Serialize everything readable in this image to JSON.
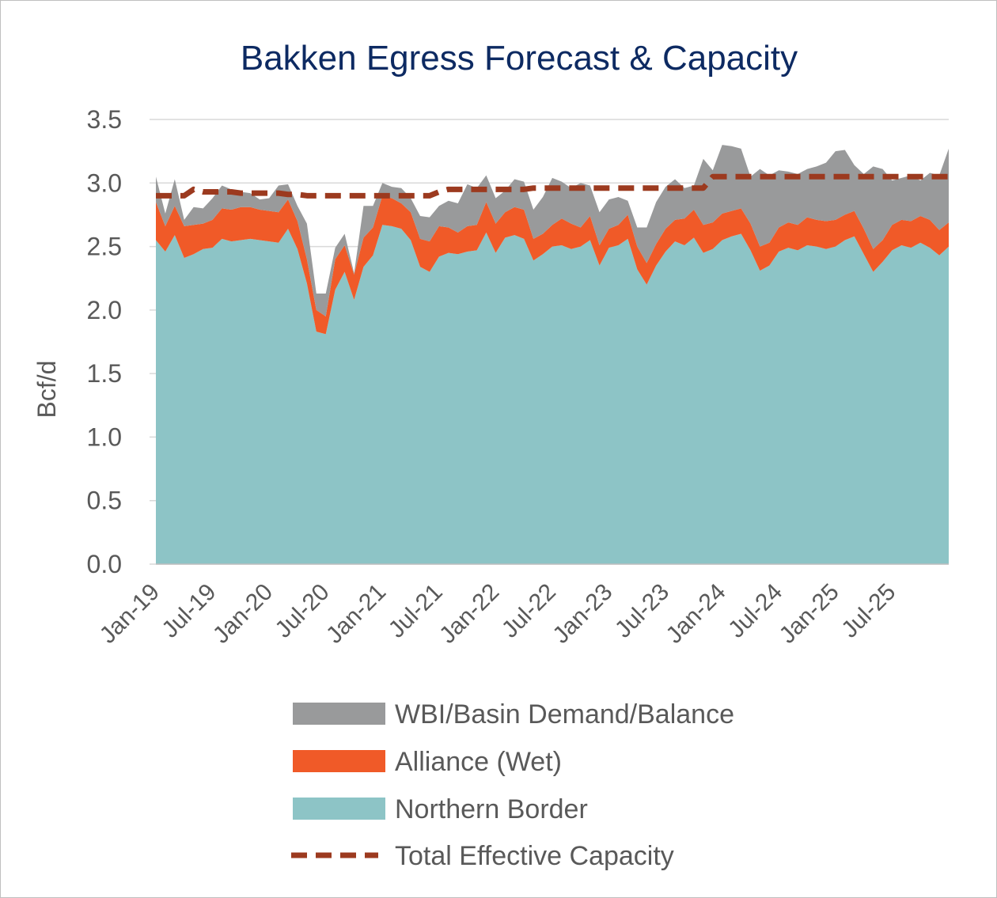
{
  "chart_data": {
    "type": "area",
    "title": "Bakken Egress Forecast & Capacity",
    "ylabel": "Bcf/d",
    "xlabel": "",
    "ylim": [
      0,
      3.5
    ],
    "yticks": [
      "0.0",
      "0.5",
      "1.0",
      "1.5",
      "2.0",
      "2.5",
      "3.0",
      "3.5"
    ],
    "ytick_values": [
      0,
      0.5,
      1.0,
      1.5,
      2.0,
      2.5,
      3.0,
      3.5
    ],
    "xticks": [
      "Jan-19",
      "Jul-19",
      "Jan-20",
      "Jul-20",
      "Jan-21",
      "Jul-21",
      "Jan-22",
      "Jul-22",
      "Jan-23",
      "Jul-23",
      "Jan-24",
      "Jul-24",
      "Jan-25",
      "Jul-25"
    ],
    "x_start": "Jan-19",
    "x_end": "Dec-25",
    "grid": "horizontal",
    "legend_position": "bottom",
    "stacked": true,
    "series": [
      {
        "name": "Northern Border",
        "color": "#8dc4c6",
        "kind": "area",
        "values": [
          2.55,
          2.46,
          2.59,
          2.41,
          2.44,
          2.48,
          2.49,
          2.56,
          2.54,
          2.55,
          2.56,
          2.55,
          2.54,
          2.53,
          2.64,
          2.48,
          2.21,
          1.83,
          1.81,
          2.16,
          2.3,
          2.08,
          2.34,
          2.43,
          2.67,
          2.66,
          2.64,
          2.55,
          2.34,
          2.3,
          2.42,
          2.45,
          2.44,
          2.46,
          2.47,
          2.61,
          2.45,
          2.57,
          2.59,
          2.56,
          2.39,
          2.44,
          2.5,
          2.51,
          2.48,
          2.5,
          2.55,
          2.35,
          2.49,
          2.51,
          2.56,
          2.32,
          2.2,
          2.35,
          2.46,
          2.54,
          2.51,
          2.57,
          2.45,
          2.48,
          2.55,
          2.58,
          2.6,
          2.47,
          2.31,
          2.35,
          2.46,
          2.49,
          2.47,
          2.51,
          2.5,
          2.48,
          2.5,
          2.55,
          2.58,
          2.44,
          2.3,
          2.38,
          2.47,
          2.51,
          2.49,
          2.53,
          2.49,
          2.43,
          2.5
        ]
      },
      {
        "name": "Alliance (Wet)",
        "color": "#f05a28",
        "kind": "area",
        "values": [
          0.3,
          0.2,
          0.23,
          0.25,
          0.23,
          0.2,
          0.22,
          0.24,
          0.25,
          0.26,
          0.25,
          0.24,
          0.24,
          0.24,
          0.23,
          0.22,
          0.19,
          0.17,
          0.14,
          0.24,
          0.21,
          0.2,
          0.23,
          0.22,
          0.23,
          0.22,
          0.2,
          0.22,
          0.22,
          0.24,
          0.24,
          0.2,
          0.17,
          0.2,
          0.2,
          0.24,
          0.23,
          0.2,
          0.22,
          0.23,
          0.17,
          0.16,
          0.17,
          0.21,
          0.2,
          0.15,
          0.19,
          0.16,
          0.15,
          0.16,
          0.19,
          0.18,
          0.17,
          0.17,
          0.18,
          0.17,
          0.21,
          0.22,
          0.22,
          0.21,
          0.21,
          0.2,
          0.2,
          0.21,
          0.19,
          0.18,
          0.19,
          0.2,
          0.2,
          0.22,
          0.21,
          0.22,
          0.21,
          0.2,
          0.2,
          0.2,
          0.18,
          0.17,
          0.2,
          0.2,
          0.21,
          0.21,
          0.22,
          0.2,
          0.19
        ]
      },
      {
        "name": "WBI/Basin Demand/Balance",
        "color": "#999a9b",
        "kind": "area",
        "values": [
          0.2,
          0.1,
          0.21,
          0.05,
          0.14,
          0.12,
          0.17,
          0.18,
          0.16,
          0.12,
          0.11,
          0.08,
          0.1,
          0.21,
          0.12,
          0.12,
          0.28,
          0.13,
          0.18,
          0.09,
          0.09,
          0.01,
          0.25,
          0.17,
          0.1,
          0.09,
          0.12,
          0.11,
          0.18,
          0.19,
          0.16,
          0.21,
          0.23,
          0.33,
          0.29,
          0.21,
          0.2,
          0.17,
          0.22,
          0.22,
          0.23,
          0.29,
          0.37,
          0.29,
          0.28,
          0.35,
          0.24,
          0.26,
          0.23,
          0.22,
          0.11,
          0.15,
          0.28,
          0.33,
          0.33,
          0.32,
          0.24,
          0.19,
          0.52,
          0.41,
          0.54,
          0.51,
          0.47,
          0.37,
          0.61,
          0.53,
          0.45,
          0.4,
          0.4,
          0.38,
          0.42,
          0.46,
          0.54,
          0.51,
          0.36,
          0.43,
          0.65,
          0.56,
          0.35,
          0.33,
          0.36,
          0.28,
          0.37,
          0.43,
          0.58
        ]
      },
      {
        "name": "Total Effective Capacity",
        "color": "#9c3a1f",
        "kind": "dashed-line",
        "values": [
          2.9,
          2.9,
          2.9,
          2.9,
          2.95,
          2.93,
          2.93,
          2.93,
          2.93,
          2.92,
          2.92,
          2.92,
          2.92,
          2.92,
          2.91,
          2.91,
          2.9,
          2.9,
          2.9,
          2.9,
          2.9,
          2.9,
          2.9,
          2.9,
          2.9,
          2.9,
          2.9,
          2.9,
          2.9,
          2.9,
          2.93,
          2.95,
          2.95,
          2.95,
          2.95,
          2.95,
          2.95,
          2.95,
          2.95,
          2.95,
          2.96,
          2.96,
          2.96,
          2.96,
          2.96,
          2.96,
          2.96,
          2.96,
          2.96,
          2.96,
          2.96,
          2.96,
          2.96,
          2.96,
          2.96,
          2.96,
          2.96,
          2.96,
          2.96,
          3.05,
          3.05,
          3.05,
          3.05,
          3.05,
          3.05,
          3.05,
          3.05,
          3.05,
          3.05,
          3.05,
          3.05,
          3.05,
          3.05,
          3.05,
          3.05,
          3.05,
          3.05,
          3.05,
          3.05,
          3.05,
          3.05,
          3.05,
          3.05,
          3.05,
          3.05
        ]
      }
    ],
    "legend": [
      {
        "label": "WBI/Basin Demand/Balance",
        "color": "#999a9b",
        "kind": "area"
      },
      {
        "label": "Alliance (Wet)",
        "color": "#f05a28",
        "kind": "area"
      },
      {
        "label": "Northern Border",
        "color": "#8dc4c6",
        "kind": "area"
      },
      {
        "label": "Total Effective Capacity",
        "color": "#9c3a1f",
        "kind": "dashed-line"
      }
    ]
  }
}
